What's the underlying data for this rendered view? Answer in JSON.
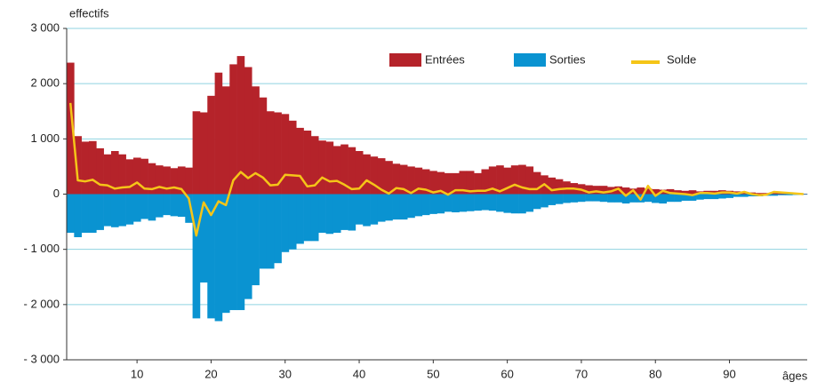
{
  "chart_data": {
    "type": "bar",
    "y_axis_label": "effectifs",
    "x_axis_label": "âges",
    "x": [
      1,
      2,
      3,
      4,
      5,
      6,
      7,
      8,
      9,
      10,
      11,
      12,
      13,
      14,
      15,
      16,
      17,
      18,
      19,
      20,
      21,
      22,
      23,
      24,
      25,
      26,
      27,
      28,
      29,
      30,
      31,
      32,
      33,
      34,
      35,
      36,
      37,
      38,
      39,
      40,
      41,
      42,
      43,
      44,
      45,
      46,
      47,
      48,
      49,
      50,
      51,
      52,
      53,
      54,
      55,
      56,
      57,
      58,
      59,
      60,
      61,
      62,
      63,
      64,
      65,
      66,
      67,
      68,
      69,
      70,
      71,
      72,
      73,
      74,
      75,
      76,
      77,
      78,
      79,
      80,
      81,
      82,
      83,
      84,
      85,
      86,
      87,
      88,
      89,
      90,
      91,
      92,
      93,
      94,
      95,
      96,
      97,
      98,
      99,
      100
    ],
    "series": [
      {
        "name": "Entrées",
        "color": "#b5232a",
        "values": [
          2380,
          1050,
          950,
          960,
          830,
          720,
          780,
          720,
          630,
          660,
          640,
          560,
          520,
          500,
          470,
          500,
          480,
          1500,
          1480,
          1780,
          2200,
          1950,
          2350,
          2500,
          2300,
          1950,
          1750,
          1500,
          1480,
          1450,
          1330,
          1200,
          1150,
          1050,
          970,
          950,
          870,
          900,
          850,
          780,
          720,
          680,
          650,
          600,
          550,
          530,
          500,
          480,
          450,
          420,
          400,
          380,
          380,
          420,
          420,
          380,
          450,
          500,
          520,
          480,
          520,
          530,
          500,
          400,
          340,
          300,
          270,
          230,
          200,
          180,
          160,
          150,
          150,
          130,
          140,
          120,
          100,
          120,
          100,
          90,
          80,
          90,
          70,
          60,
          70,
          50,
          60,
          60,
          70,
          60,
          50,
          40,
          30,
          20,
          20,
          20,
          15,
          10,
          10,
          5
        ]
      },
      {
        "name": "Sorties",
        "color": "#0a93d1",
        "values": [
          -700,
          -780,
          -700,
          -700,
          -650,
          -580,
          -600,
          -580,
          -550,
          -500,
          -450,
          -480,
          -420,
          -380,
          -400,
          -410,
          -520,
          -2250,
          -1600,
          -2250,
          -2300,
          -2150,
          -2100,
          -2100,
          -1900,
          -1650,
          -1350,
          -1350,
          -1250,
          -1050,
          -1000,
          -900,
          -850,
          -850,
          -700,
          -720,
          -700,
          -650,
          -660,
          -550,
          -580,
          -550,
          -500,
          -480,
          -460,
          -460,
          -430,
          -400,
          -380,
          -360,
          -350,
          -320,
          -330,
          -320,
          -310,
          -300,
          -290,
          -300,
          -320,
          -340,
          -350,
          -350,
          -320,
          -270,
          -240,
          -200,
          -180,
          -160,
          -150,
          -140,
          -130,
          -130,
          -140,
          -150,
          -150,
          -170,
          -150,
          -150,
          -140,
          -160,
          -170,
          -140,
          -140,
          -120,
          -120,
          -100,
          -90,
          -90,
          -80,
          -70,
          -50,
          -50,
          -40,
          -40,
          -30,
          -30,
          -20,
          -20,
          -15,
          -10
        ]
      },
      {
        "name": "Solde",
        "type": "line",
        "color": "#f5c518",
        "values": [
          1650,
          250,
          230,
          260,
          170,
          160,
          100,
          120,
          130,
          210,
          100,
          90,
          130,
          100,
          120,
          90,
          -80,
          -750,
          -150,
          -380,
          -130,
          -200,
          250,
          400,
          290,
          380,
          300,
          160,
          170,
          350,
          340,
          330,
          140,
          160,
          300,
          230,
          240,
          170,
          90,
          100,
          250,
          170,
          80,
          10,
          110,
          90,
          20,
          100,
          80,
          30,
          60,
          -10,
          70,
          70,
          50,
          60,
          60,
          100,
          50,
          110,
          170,
          120,
          90,
          90,
          180,
          70,
          90,
          100,
          100,
          80,
          30,
          50,
          30,
          50,
          100,
          -30,
          70,
          -100,
          150,
          -30,
          60,
          20,
          10,
          0,
          -20,
          20,
          20,
          10,
          30,
          30,
          10,
          40,
          0,
          -20,
          -10,
          40,
          30,
          20,
          10,
          0
        ]
      }
    ],
    "xlim": [
      0.5,
      100.5
    ],
    "xticks": [
      10,
      20,
      30,
      40,
      50,
      60,
      70,
      80,
      90
    ],
    "ylim": [
      -3000,
      3000
    ],
    "yticks": [
      {
        "value": -3000,
        "label": "- 3 000"
      },
      {
        "value": -2000,
        "label": "- 2 000"
      },
      {
        "value": -1000,
        "label": "- 1 000"
      },
      0,
      {
        "value": 1000,
        "label": "1 000"
      },
      {
        "value": 2000,
        "label": "2 000"
      },
      {
        "value": 3000,
        "label": "3 000"
      }
    ],
    "grid": true,
    "legend": "top-right"
  }
}
